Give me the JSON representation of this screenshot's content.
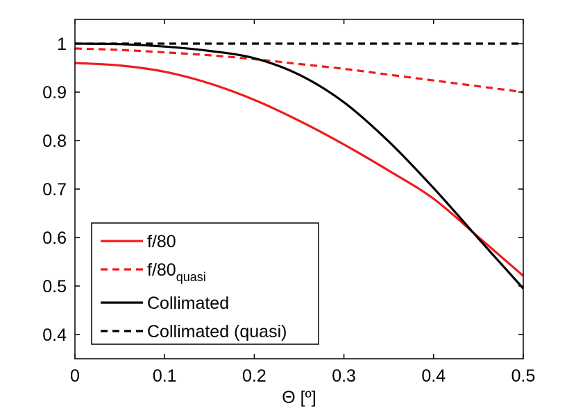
{
  "chart_data": {
    "type": "line",
    "title": "",
    "xlabel": "Θ [º]",
    "ylabel": "",
    "xlim": [
      0,
      0.5
    ],
    "ylim": [
      0.35,
      1.05
    ],
    "xticks": [
      0,
      0.1,
      0.2,
      0.3,
      0.4,
      0.5
    ],
    "xtick_labels": [
      "0",
      "0.1",
      "0.2",
      "0.3",
      "0.4",
      "0.5"
    ],
    "yticks": [
      0.4,
      0.5,
      0.6,
      0.7,
      0.8,
      0.9,
      1.0
    ],
    "ytick_labels": [
      "0.4",
      "0.5",
      "0.6",
      "0.7",
      "0.8",
      "0.9",
      "1"
    ],
    "grid": false,
    "legend_position": "bottom-left",
    "x": [
      0,
      0.05,
      0.1,
      0.15,
      0.2,
      0.25,
      0.3,
      0.35,
      0.4,
      0.45,
      0.5
    ],
    "series": [
      {
        "name": "f/80",
        "legend_main": "f/80",
        "legend_sub": "",
        "color": "#ee1c1c",
        "dash": "solid",
        "values": [
          0.96,
          0.955,
          0.942,
          0.918,
          0.884,
          0.841,
          0.792,
          0.738,
          0.68,
          0.601,
          0.521
        ]
      },
      {
        "name": "f/80quasi",
        "legend_main": "f/80",
        "legend_sub": "quasi",
        "color": "#ee1c1c",
        "dash": "dashed",
        "values": [
          0.99,
          0.987,
          0.982,
          0.976,
          0.968,
          0.958,
          0.948,
          0.936,
          0.924,
          0.912,
          0.9
        ]
      },
      {
        "name": "Collimated",
        "legend_main": "Collimated",
        "legend_sub": "",
        "color": "#000000",
        "dash": "solid",
        "values": [
          1.0,
          0.999,
          0.994,
          0.985,
          0.97,
          0.936,
          0.879,
          0.798,
          0.702,
          0.598,
          0.495
        ]
      },
      {
        "name": "Collimated (quasi)",
        "legend_main": "Collimated (quasi)",
        "legend_sub": "",
        "color": "#000000",
        "dash": "dashed",
        "values": [
          1.0,
          1.0,
          1.0,
          1.0,
          1.0,
          1.0,
          1.0,
          1.0,
          1.0,
          1.0,
          1.0
        ]
      }
    ]
  }
}
